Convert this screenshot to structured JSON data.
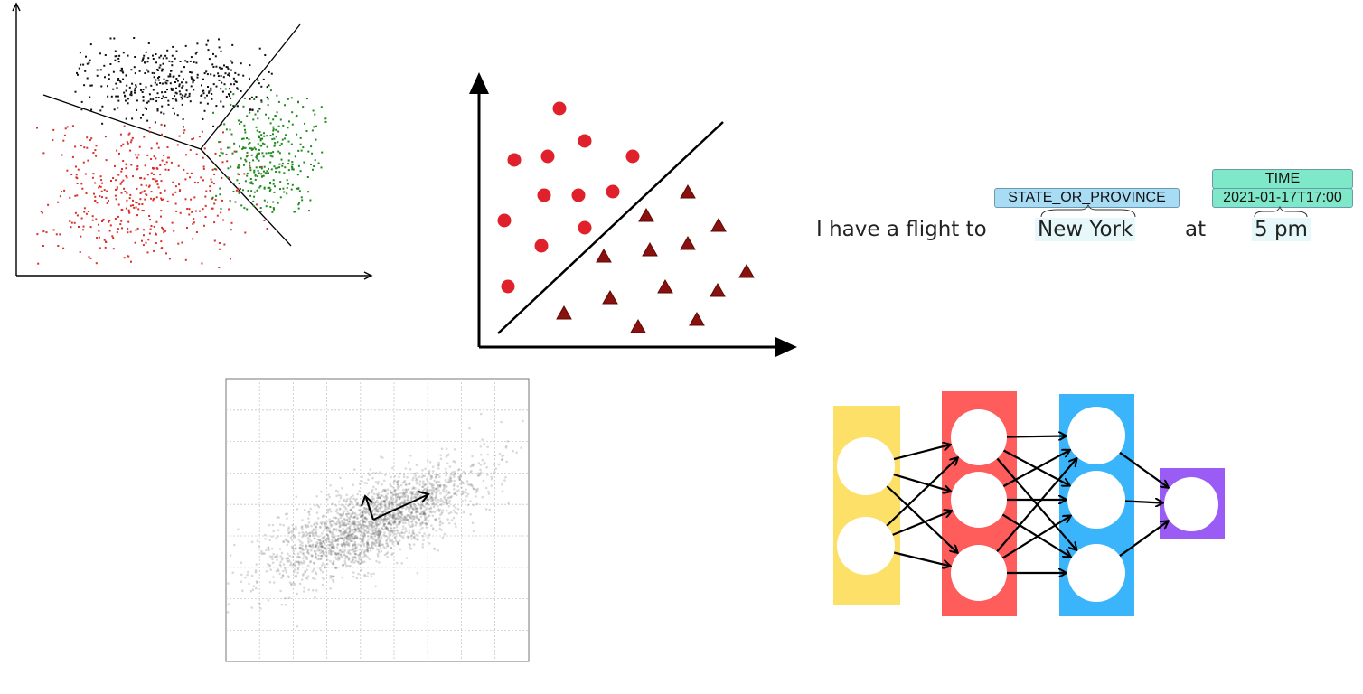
{
  "colors": {
    "cluster_black": "#111111",
    "cluster_red": "#d9302c",
    "cluster_green": "#1f8a1f",
    "circle_red": "#e0202a",
    "triangle_darkred": "#8b1010",
    "scatter_gray": "#555555",
    "layer_yellow": "#fde068",
    "layer_red": "#ff5c5c",
    "layer_blue": "#3ab4fa",
    "layer_purple": "#9a5cf4",
    "tag_blue": "#a8dcf5",
    "tag_green": "#7fe8c8",
    "word_highlight": "#e7f8fb"
  },
  "ner": {
    "sentence": [
      "I have a flight to",
      "New York",
      "at",
      "5 pm"
    ],
    "entities": [
      {
        "label": "STATE_OR_PROVINCE",
        "text": "New York"
      },
      {
        "label": "TIME",
        "value": "2021-01-17T17:00",
        "text": "5 pm"
      }
    ]
  },
  "neural_net": {
    "layers": [
      {
        "nodes": 2,
        "color": "#fde068"
      },
      {
        "nodes": 3,
        "color": "#ff5c5c"
      },
      {
        "nodes": 3,
        "color": "#3ab4fa"
      },
      {
        "nodes": 1,
        "color": "#9a5cf4"
      }
    ]
  },
  "icons": [
    "axis-arrow",
    "decision-boundary-line",
    "principal-component-arrow",
    "connection-arrow"
  ]
}
